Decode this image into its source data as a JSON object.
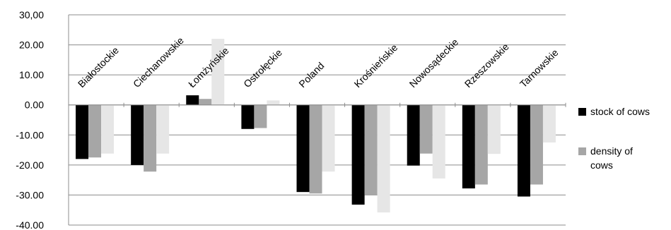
{
  "chart_data": {
    "type": "bar",
    "categories": [
      "Białostockie",
      "Ciechanowskie",
      "Łomżyńskie",
      "Ostrołęckie",
      "Poland",
      "Krośnieńskie",
      "Nowosądeckie",
      "Rzeszowskie",
      "Tarnowskie"
    ],
    "series": [
      {
        "name": "stock of cows",
        "values": [
          -18.0,
          -20.0,
          3.2,
          -8.0,
          -29.0,
          -33.2,
          -20.2,
          -27.8,
          -30.5
        ],
        "color": "#000000"
      },
      {
        "name": "density of cows",
        "values": [
          -17.5,
          -22.2,
          2.0,
          -7.7,
          -29.5,
          -30.0,
          -16.2,
          -26.5,
          -26.5
        ],
        "color": "#a6a6a6"
      },
      {
        "name": "",
        "values": [
          -16.2,
          -16.2,
          22.0,
          1.5,
          -22.2,
          -35.8,
          -24.5,
          -16.3,
          -12.5
        ],
        "color": "#e6e6e6"
      }
    ],
    "yticks": [
      "30,00",
      "20.00",
      "10.00",
      "0.00",
      "-10.00",
      "-20.00",
      "-30.00",
      "-40.00"
    ],
    "ylim": [
      -40,
      30
    ],
    "grid": true,
    "legend": "right",
    "title": "",
    "xlabel": "",
    "ylabel": ""
  }
}
